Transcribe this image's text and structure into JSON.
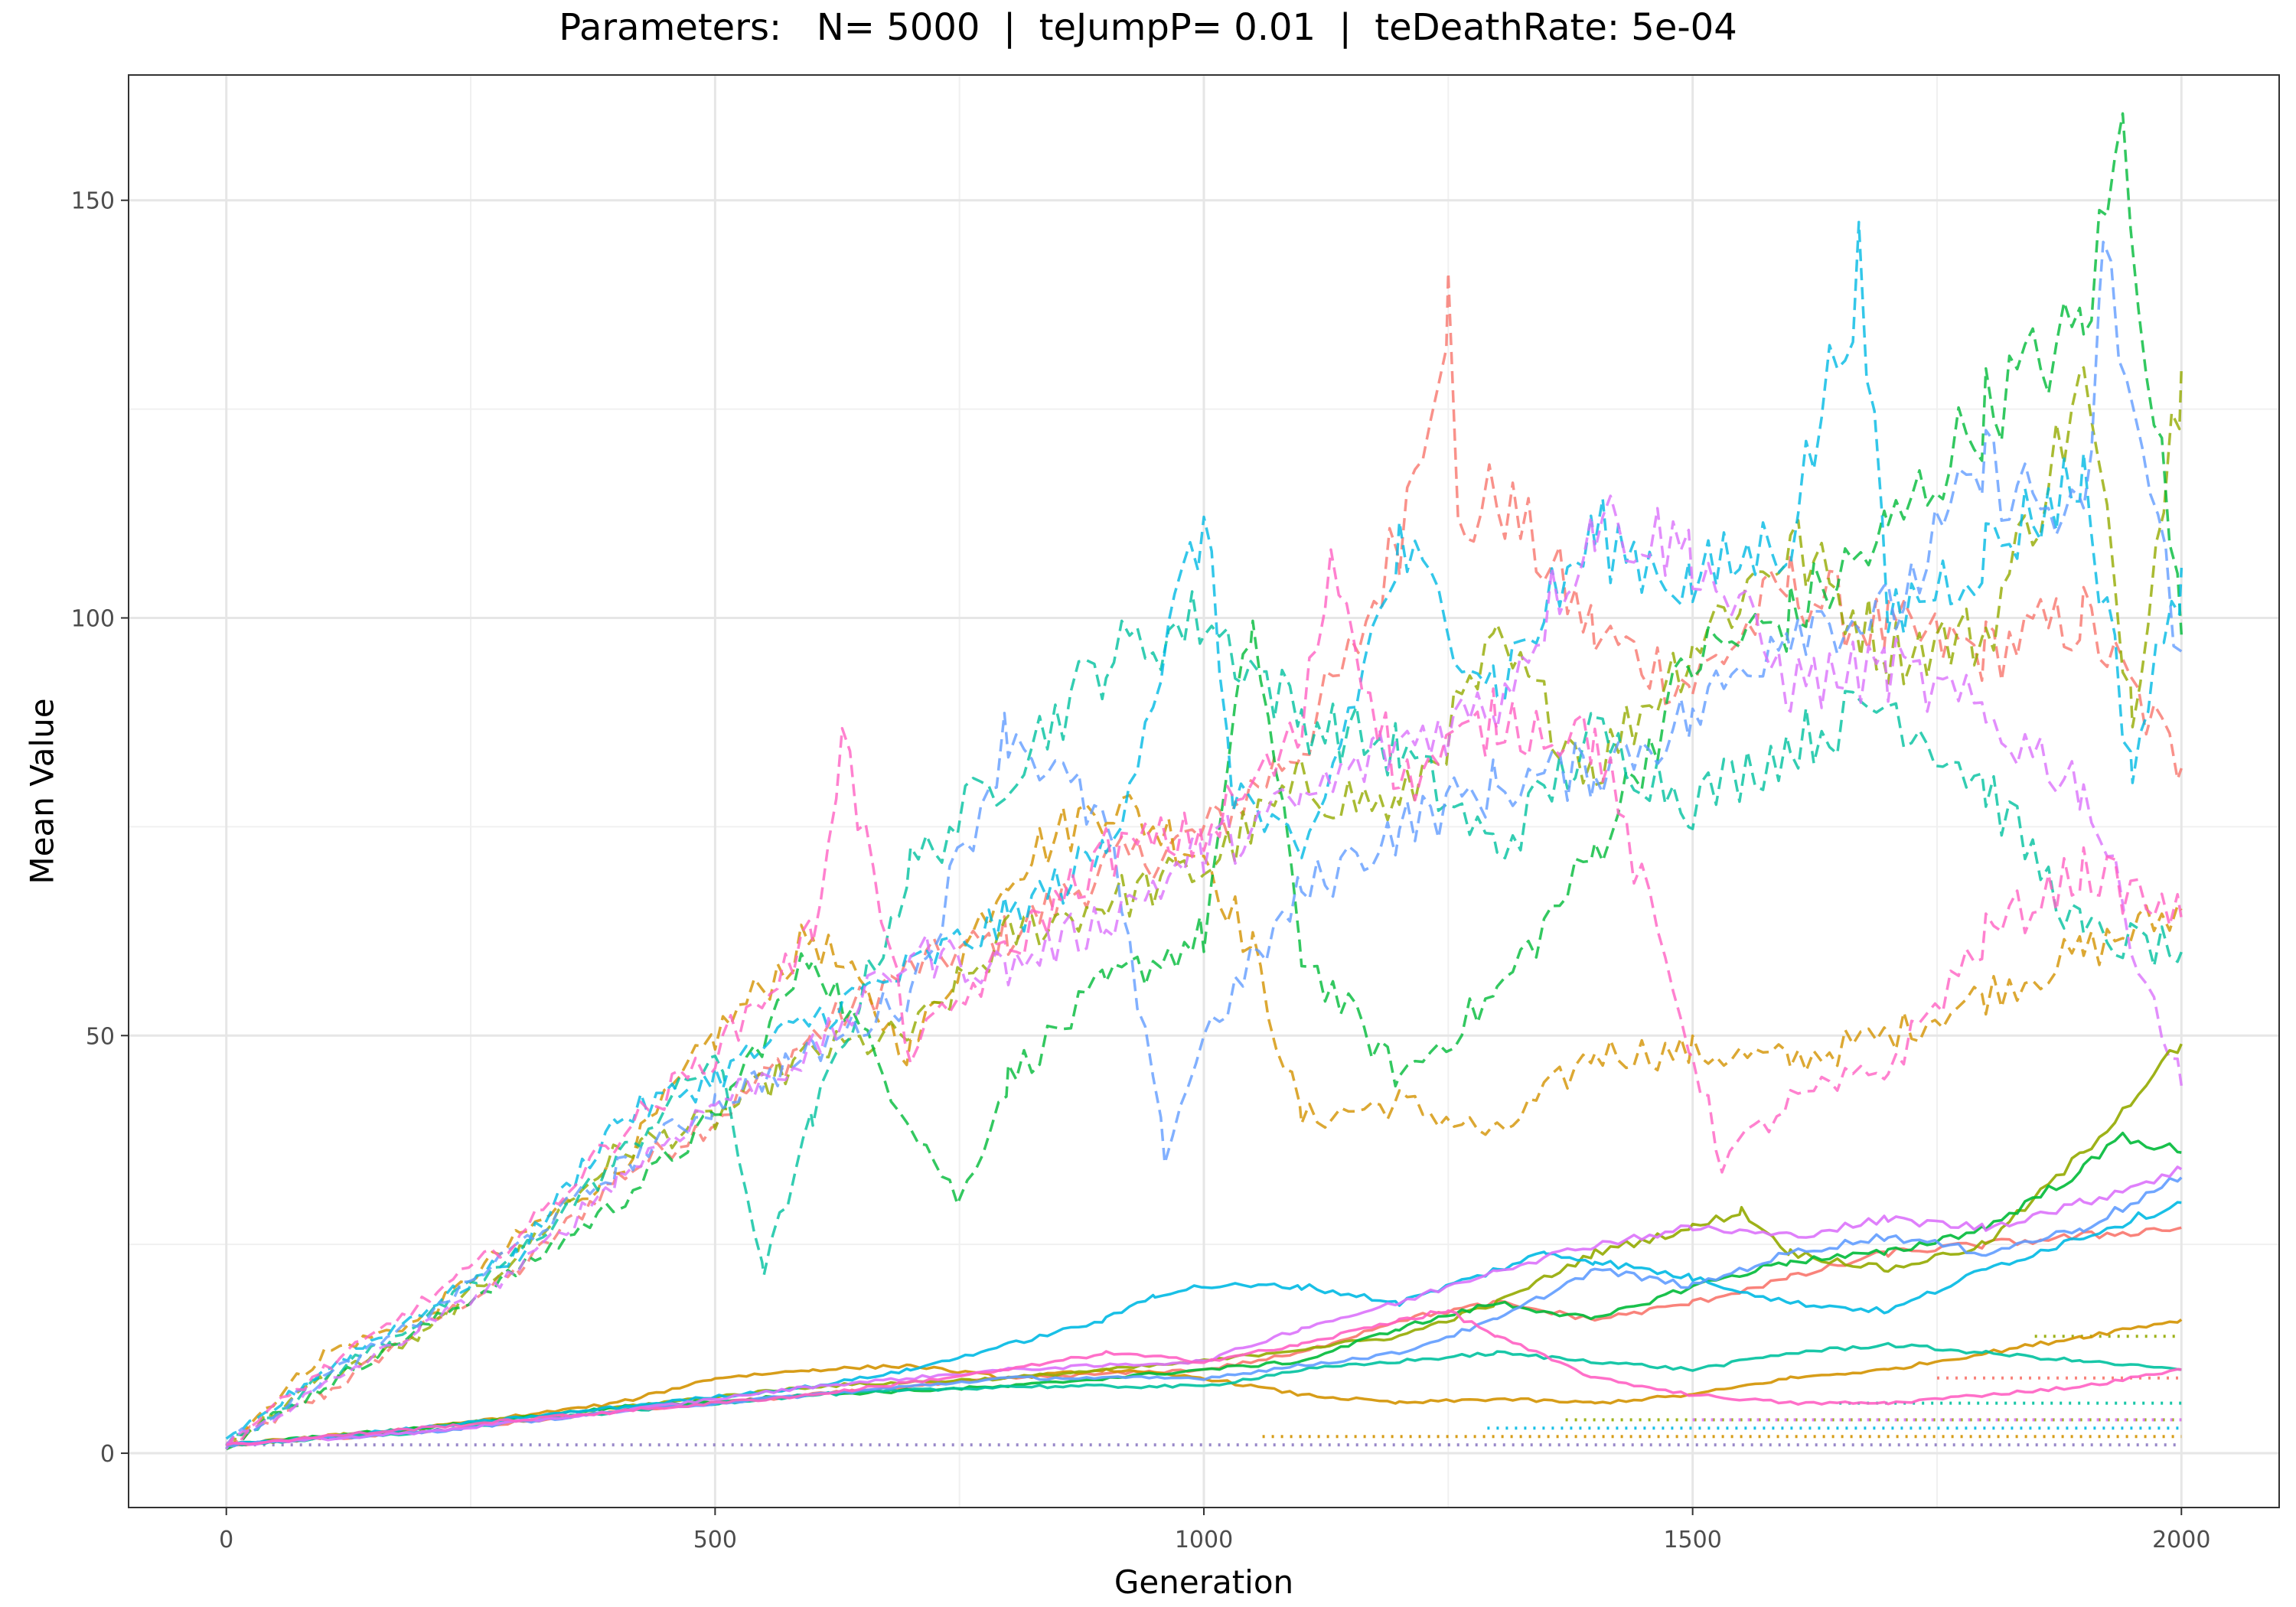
{
  "chart_data": {
    "type": "line",
    "title": "Parameters:   N= 5000  |  teJumpP= 0.01  |  teDeathRate: 5e-04",
    "xlabel": "Generation",
    "ylabel": "Mean Value",
    "xlim": [
      -100,
      2100
    ],
    "ylim": [
      -6.5,
      165
    ],
    "x_ticks": [
      0,
      500,
      1000,
      1500,
      2000
    ],
    "x_tick_labels": [
      "0",
      "500",
      "1000",
      "1500",
      "2000"
    ],
    "y_ticks": [
      0,
      50,
      100,
      150
    ],
    "y_tick_labels": [
      "0",
      "50",
      "100",
      "150"
    ],
    "grid": true,
    "legend": "none",
    "line_styles": [
      "dashed",
      "solid",
      "dotted"
    ],
    "colors": [
      "#F8766D",
      "#D39200",
      "#93AA00",
      "#00BA38",
      "#00C19F",
      "#00B9E3",
      "#619CFF",
      "#DB72FB",
      "#FF61C3"
    ],
    "series": [
      {
        "style": "dashed",
        "color": "#F8766D",
        "x": [
          0,
          100,
          200,
          300,
          400,
          500,
          600,
          700,
          800,
          900,
          1000,
          1100,
          1150,
          1200,
          1250,
          1260,
          1300,
          1400,
          1500,
          1600,
          1700,
          1800,
          1900,
          2000
        ],
        "values": [
          1,
          7,
          15,
          22,
          33,
          40,
          50,
          58,
          62,
          70,
          74,
          85,
          95,
          110,
          138,
          110,
          115,
          98,
          92,
          104,
          98,
          96,
          100,
          82
        ]
      },
      {
        "style": "dashed",
        "color": "#D39200",
        "x": [
          0,
          100,
          200,
          300,
          400,
          500,
          600,
          700,
          800,
          900,
          1000,
          1050,
          1100,
          1200,
          1300,
          1400,
          1500,
          1600,
          1700,
          1800,
          1900,
          2000
        ],
        "values": [
          1,
          12,
          16,
          26,
          34,
          50,
          62,
          48,
          70,
          78,
          72,
          60,
          40,
          42,
          38,
          48,
          48,
          47,
          50,
          55,
          60,
          65
        ]
      },
      {
        "style": "dashed",
        "color": "#93AA00",
        "x": [
          0,
          100,
          200,
          300,
          400,
          500,
          600,
          700,
          800,
          900,
          1000,
          1100,
          1200,
          1300,
          1400,
          1500,
          1600,
          1700,
          1800,
          1900,
          1950,
          2000
        ],
        "values": [
          1,
          9,
          14,
          24,
          36,
          40,
          48,
          50,
          62,
          66,
          70,
          80,
          77,
          96,
          82,
          97,
          109,
          96,
          98,
          128,
          90,
          130
        ]
      },
      {
        "style": "dashed",
        "color": "#00BA38",
        "x": [
          0,
          100,
          200,
          300,
          400,
          500,
          600,
          700,
          750,
          800,
          900,
          1000,
          1050,
          1100,
          1200,
          1300,
          1400,
          1500,
          1600,
          1700,
          1800,
          1900,
          1940,
          2000
        ],
        "values": [
          1,
          8,
          15,
          22,
          30,
          40,
          60,
          40,
          30,
          45,
          56,
          62,
          100,
          60,
          45,
          55,
          72,
          95,
          100,
          110,
          125,
          135,
          158,
          98
        ]
      },
      {
        "style": "dashed",
        "color": "#00C19F",
        "x": [
          0,
          100,
          200,
          300,
          400,
          500,
          550,
          600,
          700,
          800,
          900,
          1000,
          1100,
          1200,
          1300,
          1400,
          1500,
          1600,
          1700,
          1800,
          1900,
          2000
        ],
        "values": [
          1,
          9,
          16,
          24,
          35,
          48,
          22,
          40,
          70,
          82,
          95,
          100,
          88,
          84,
          72,
          86,
          78,
          85,
          90,
          80,
          62,
          60
        ]
      },
      {
        "style": "dashed",
        "color": "#00B9E3",
        "x": [
          0,
          100,
          200,
          300,
          400,
          500,
          600,
          700,
          800,
          900,
          970,
          1000,
          1030,
          1100,
          1200,
          1300,
          1400,
          1500,
          1600,
          1670,
          1700,
          1800,
          1900,
          1950,
          2000
        ],
        "values": [
          1,
          10,
          17,
          24,
          40,
          45,
          52,
          58,
          64,
          72,
          100,
          112,
          80,
          70,
          108,
          92,
          110,
          104,
          110,
          142,
          100,
          108,
          117,
          82,
          106
        ]
      },
      {
        "style": "dashed",
        "color": "#619CFF",
        "x": [
          0,
          100,
          200,
          300,
          400,
          500,
          600,
          700,
          800,
          900,
          960,
          1000,
          1100,
          1200,
          1300,
          1400,
          1500,
          1600,
          1700,
          1800,
          1900,
          1920,
          2000
        ],
        "values": [
          1,
          9,
          16,
          25,
          34,
          42,
          48,
          55,
          87,
          75,
          36,
          50,
          67,
          75,
          80,
          82,
          88,
          100,
          100,
          118,
          110,
          143,
          96
        ]
      },
      {
        "style": "dashed",
        "color": "#DB72FB",
        "x": [
          0,
          100,
          200,
          300,
          400,
          500,
          600,
          700,
          800,
          900,
          1000,
          1100,
          1200,
          1300,
          1400,
          1500,
          1600,
          1700,
          1800,
          1900,
          2000
        ],
        "values": [
          1,
          8,
          15,
          22,
          33,
          42,
          48,
          60,
          58,
          64,
          72,
          78,
          85,
          90,
          112,
          108,
          92,
          94,
          88,
          80,
          44
        ]
      },
      {
        "style": "dashed",
        "color": "#FF61C3",
        "x": [
          0,
          100,
          200,
          300,
          400,
          500,
          600,
          630,
          700,
          800,
          900,
          1000,
          1100,
          1130,
          1200,
          1300,
          1400,
          1500,
          1530,
          1600,
          1700,
          1800,
          1900,
          2000
        ],
        "values": [
          1,
          10,
          18,
          26,
          38,
          48,
          62,
          86,
          48,
          60,
          72,
          74,
          86,
          108,
          80,
          88,
          86,
          48,
          35,
          42,
          46,
          62,
          70,
          64
        ]
      },
      {
        "style": "solid",
        "color": "#F8766D",
        "x": [
          0,
          200,
          400,
          600,
          800,
          1000,
          1100,
          1200,
          1300,
          1400,
          1500,
          1600,
          1700,
          1800,
          1900,
          2000
        ],
        "values": [
          1,
          2.5,
          5,
          7,
          9,
          10,
          12,
          16,
          18,
          16,
          18,
          21,
          24,
          25,
          26,
          27
        ]
      },
      {
        "style": "solid",
        "color": "#D39200",
        "x": [
          0,
          200,
          400,
          500,
          600,
          700,
          800,
          900,
          1000,
          1100,
          1200,
          1300,
          1400,
          1500,
          1600,
          1700,
          1800,
          1900,
          2000
        ],
        "values": [
          1,
          3,
          6,
          9,
          10,
          10.5,
          9,
          10,
          9,
          7,
          6,
          6.5,
          6,
          7,
          9,
          10,
          12,
          14,
          16
        ]
      },
      {
        "style": "solid",
        "color": "#93AA00",
        "x": [
          0,
          200,
          400,
          600,
          800,
          1000,
          1200,
          1300,
          1400,
          1500,
          1550,
          1600,
          1700,
          1800,
          1900,
          2000
        ],
        "values": [
          1,
          3,
          5.5,
          8,
          9,
          11,
          14,
          18,
          24,
          27,
          29,
          24,
          22,
          25,
          36,
          49
        ]
      },
      {
        "style": "solid",
        "color": "#00BA38",
        "x": [
          0,
          200,
          400,
          600,
          800,
          1000,
          1100,
          1200,
          1300,
          1400,
          1500,
          1600,
          1700,
          1800,
          1900,
          1940,
          2000
        ],
        "values": [
          1,
          3,
          5.5,
          7,
          8,
          10,
          11,
          15,
          18,
          16,
          20,
          23,
          24,
          27,
          34,
          38,
          36
        ]
      },
      {
        "style": "solid",
        "color": "#00C19F",
        "x": [
          0,
          200,
          400,
          600,
          800,
          1000,
          1100,
          1200,
          1300,
          1400,
          1500,
          1600,
          1700,
          1800,
          1900,
          2000
        ],
        "values": [
          1,
          2.5,
          5,
          7,
          8,
          8,
          10,
          11,
          12,
          11,
          10,
          12,
          13,
          12,
          11,
          10
        ]
      },
      {
        "style": "solid",
        "color": "#00B9E3",
        "x": [
          0,
          200,
          400,
          600,
          700,
          800,
          900,
          950,
          1000,
          1100,
          1200,
          1300,
          1350,
          1400,
          1500,
          1600,
          1700,
          1800,
          1900,
          2000
        ],
        "values": [
          1,
          3,
          5.5,
          8,
          10,
          13,
          16,
          19,
          20,
          20,
          18,
          22,
          24,
          23,
          21,
          18,
          17,
          22,
          26,
          30
        ]
      },
      {
        "style": "solid",
        "color": "#619CFF",
        "x": [
          0,
          200,
          400,
          600,
          800,
          1000,
          1200,
          1300,
          1400,
          1500,
          1600,
          1700,
          1800,
          1900,
          2000
        ],
        "values": [
          1,
          2.5,
          5,
          7,
          9,
          9,
          12,
          16,
          22,
          20,
          24,
          26,
          24,
          27,
          33
        ]
      },
      {
        "style": "solid",
        "color": "#DB72FB",
        "x": [
          0,
          200,
          400,
          600,
          800,
          1000,
          1100,
          1200,
          1300,
          1400,
          1500,
          1600,
          1700,
          1800,
          1900,
          2000
        ],
        "values": [
          1,
          2.5,
          5,
          8,
          10,
          11,
          15,
          18,
          22,
          25,
          27,
          26,
          28,
          27,
          30,
          34
        ]
      },
      {
        "style": "solid",
        "color": "#FF61C3",
        "x": [
          0,
          200,
          400,
          600,
          800,
          900,
          1000,
          1100,
          1200,
          1250,
          1300,
          1400,
          1500,
          1600,
          1700,
          1800,
          1900,
          2000
        ],
        "values": [
          1,
          3,
          5,
          7,
          10,
          12,
          11,
          13,
          16,
          17,
          14,
          9,
          7,
          6,
          6,
          7,
          8,
          10
        ]
      },
      {
        "style": "dotted",
        "color": "#8E7CC3",
        "x": [
          0,
          2000
        ],
        "values": [
          1,
          1
        ]
      },
      {
        "style": "dotted",
        "color": "#D39200",
        "x": [
          1060,
          2000
        ],
        "values": [
          2,
          2
        ]
      },
      {
        "style": "dotted",
        "color": "#00B9E3",
        "x": [
          1290,
          2000
        ],
        "values": [
          3,
          3
        ]
      },
      {
        "style": "dotted",
        "color": "#93AA00",
        "x": [
          1370,
          2000
        ],
        "values": [
          4,
          4
        ]
      },
      {
        "style": "dotted",
        "color": "#DB72FB",
        "x": [
          1500,
          2000
        ],
        "values": [
          4,
          4
        ]
      },
      {
        "style": "dotted",
        "color": "#00C19F",
        "x": [
          1650,
          2000
        ],
        "values": [
          6,
          6
        ]
      },
      {
        "style": "dotted",
        "color": "#F8766D",
        "x": [
          1750,
          2000
        ],
        "values": [
          9,
          9
        ]
      },
      {
        "style": "dotted",
        "color": "#93AA00",
        "x": [
          1850,
          2000
        ],
        "values": [
          14,
          14
        ]
      }
    ]
  }
}
